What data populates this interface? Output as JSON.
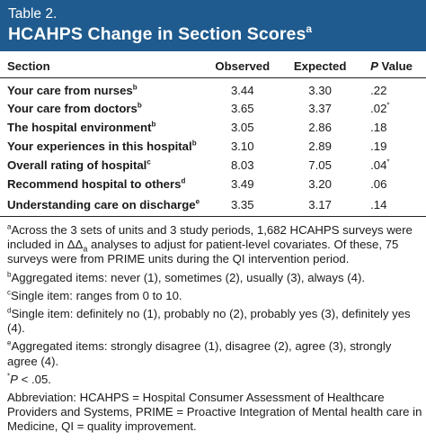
{
  "header": {
    "label": "Table 2.",
    "title": "HCAHPS Change in Section Scores",
    "title_sup": "a"
  },
  "columns": {
    "section": "Section",
    "observed": "Observed",
    "expected": "Expected",
    "p_italic": "P",
    "p_rest": " Value"
  },
  "rows": [
    {
      "name": "Your care from nurses",
      "sup": "b",
      "observed": "3.44",
      "expected": "3.30",
      "p": ".22",
      "p_sup": ""
    },
    {
      "name": "Your care from doctors",
      "sup": "b",
      "observed": "3.65",
      "expected": "3.37",
      "p": ".02",
      "p_sup": "*"
    },
    {
      "name": "The hospital environment",
      "sup": "b",
      "observed": "3.05",
      "expected": "2.86",
      "p": ".18",
      "p_sup": ""
    },
    {
      "name": "Your experiences in this hospital",
      "sup": "b",
      "observed": "3.10",
      "expected": "2.89",
      "p": ".19",
      "p_sup": ""
    },
    {
      "name": "Overall rating of hospital",
      "sup": "c",
      "observed": "8.03",
      "expected": "7.05",
      "p": ".04",
      "p_sup": "*"
    },
    {
      "name": "Recommend hospital to others",
      "sup": "d",
      "observed": "3.49",
      "expected": "3.20",
      "p": ".06",
      "p_sup": ""
    },
    {
      "name": "Understanding care on discharge",
      "sup": "e",
      "observed": "3.35",
      "expected": "3.17",
      "p": ".14",
      "p_sup": ""
    }
  ],
  "notes": {
    "a_tag": "a",
    "a_text_1": "Across the 3 sets of units and 3 study periods, 1,682 HCAHPS surveys were included in ΔΔ",
    "a_sub": "a",
    "a_text_2": " analyses to adjust for patient-level covariates. Of these, 75 surveys were from PRIME units during the QI intervention period.",
    "b_tag": "b",
    "b_text": "Aggregated items: never (1), sometimes (2), usually (3), always (4).",
    "c_tag": "c",
    "c_text": "Single item: ranges from 0 to 10.",
    "d_tag": "d",
    "d_text": "Single item: definitely no (1), probably no (2), probably yes (3), definitely yes (4).",
    "e_tag": "e",
    "e_text": "Aggregated items: strongly disagree (1), disagree (2), agree (3), strongly agree (4).",
    "star_tag": "*",
    "star_p": "P",
    "star_text": " < .05.",
    "abbreviation": "Abbreviation: HCAHPS = Hospital Consumer Assessment of Healthcare Providers and Systems, PRIME = Proactive Integration of Mental health care in Medicine, QI = quality improvement."
  },
  "colors": {
    "header_bg": "#1f5b8e",
    "header_text": "#ffffff"
  }
}
